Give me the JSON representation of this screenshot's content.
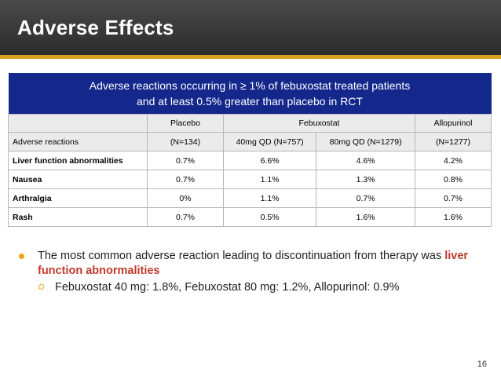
{
  "slide": {
    "title": "Adverse Effects",
    "page_number": "16",
    "accent_color": "#d8a21f",
    "header_color": "#14288c"
  },
  "table": {
    "caption_line1": "Adverse reactions occurring in ≥ 1% of febuxostat treated patients",
    "caption_line2": "and at least 0.5% greater than placebo in RCT",
    "header_groups": [
      "Placebo",
      "Febuxostat",
      "Allopurinol"
    ],
    "row_label_header": "Adverse reactions",
    "columns": [
      "(N=134)",
      "40mg QD (N=757)",
      "80mg QD (N=1279)",
      "(N=1277)"
    ],
    "rows": [
      {
        "label": "Liver function abnormalities",
        "values": [
          "0.7%",
          "6.6%",
          "4.6%",
          "4.2%"
        ]
      },
      {
        "label": "Nausea",
        "values": [
          "0.7%",
          "1.1%",
          "1.3%",
          "0.8%"
        ]
      },
      {
        "label": "Arthralgia",
        "values": [
          "0%",
          "1.1%",
          "0.7%",
          "0.7%"
        ]
      },
      {
        "label": "Rash",
        "values": [
          "0.7%",
          "0.5%",
          "1.6%",
          "1.6%"
        ]
      }
    ]
  },
  "bullets": {
    "main_text": "The most common adverse reaction leading to discontinuation from therapy was",
    "main_highlight": "liver function abnormalities",
    "sub_text": "Febuxostat 40 mg: 1.8%, Febuxostat 80 mg: 1.2%, Allopurinol: 0.9%"
  }
}
